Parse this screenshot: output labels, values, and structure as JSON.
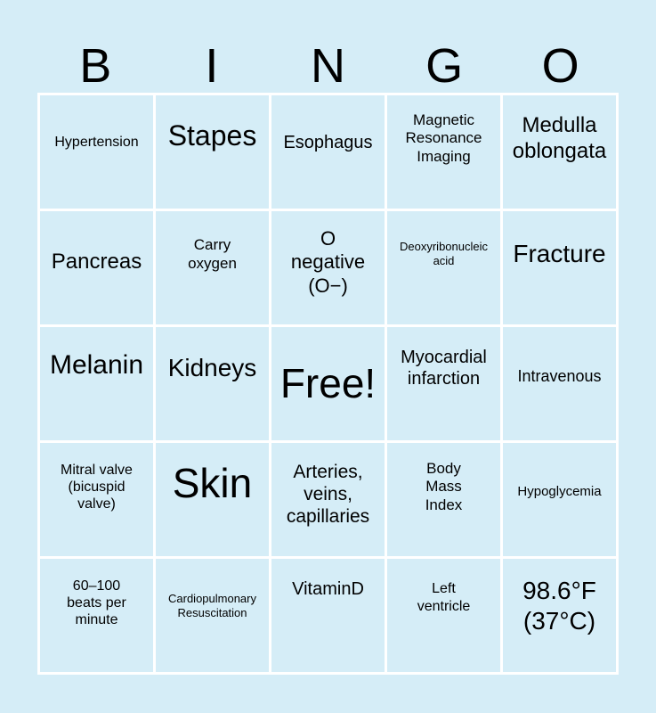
{
  "header": [
    "B",
    "I",
    "N",
    "G",
    "O"
  ],
  "cells": [
    "Hypertension",
    "Stapes",
    "Esophagus",
    "Magnetic Resonance Imaging",
    "Medulla oblongata",
    "Pancreas",
    "Carry oxygen",
    "O negative (O−)",
    "Deoxyribonucleic acid",
    "Fracture",
    "Melanin",
    "Kidneys",
    "Free!",
    "Myocardial infarction",
    "Intravenous",
    "Mitral valve (bicuspid valve)",
    "Skin",
    "Arteries, veins, capillaries",
    "Body Mass Index",
    "Hypoglycemia",
    "60–100 beats per minute",
    "Cardiopulmonary Resuscitation",
    "VitaminD",
    "Left ventricle",
    "98.6°F (37°C)"
  ],
  "colors": {
    "background": "#d5edf7",
    "grid_lines": "#ffffff"
  }
}
